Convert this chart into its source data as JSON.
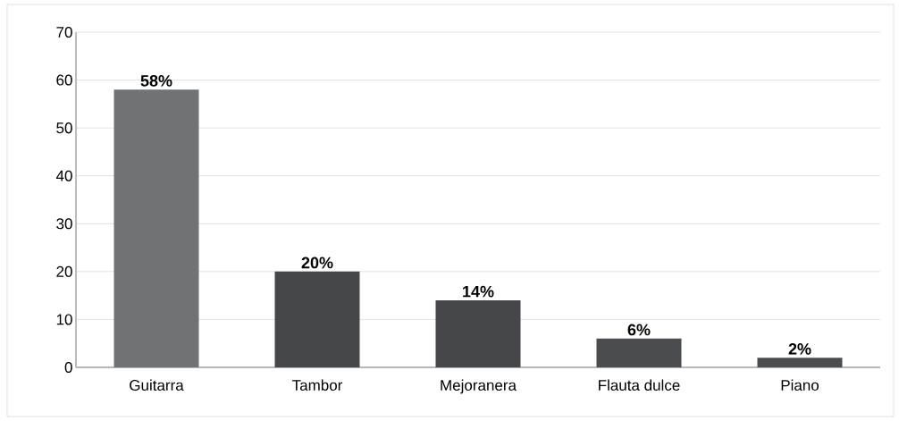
{
  "chart_data": {
    "type": "bar",
    "categories": [
      "Guitarra",
      "Tambor",
      "Mejoranera",
      "Flauta dulce",
      "Piano"
    ],
    "values": [
      58,
      20,
      14,
      6,
      2
    ],
    "value_labels": [
      "58%",
      "20%",
      "14%",
      "6%",
      "2%"
    ],
    "colors": [
      "#707276",
      "#45474b",
      "#45474b",
      "#4a4c50",
      "#4a4c50"
    ],
    "ylim": [
      0,
      70
    ],
    "yticks": [
      0,
      10,
      20,
      30,
      40,
      50,
      60,
      70
    ],
    "grid": "y"
  }
}
